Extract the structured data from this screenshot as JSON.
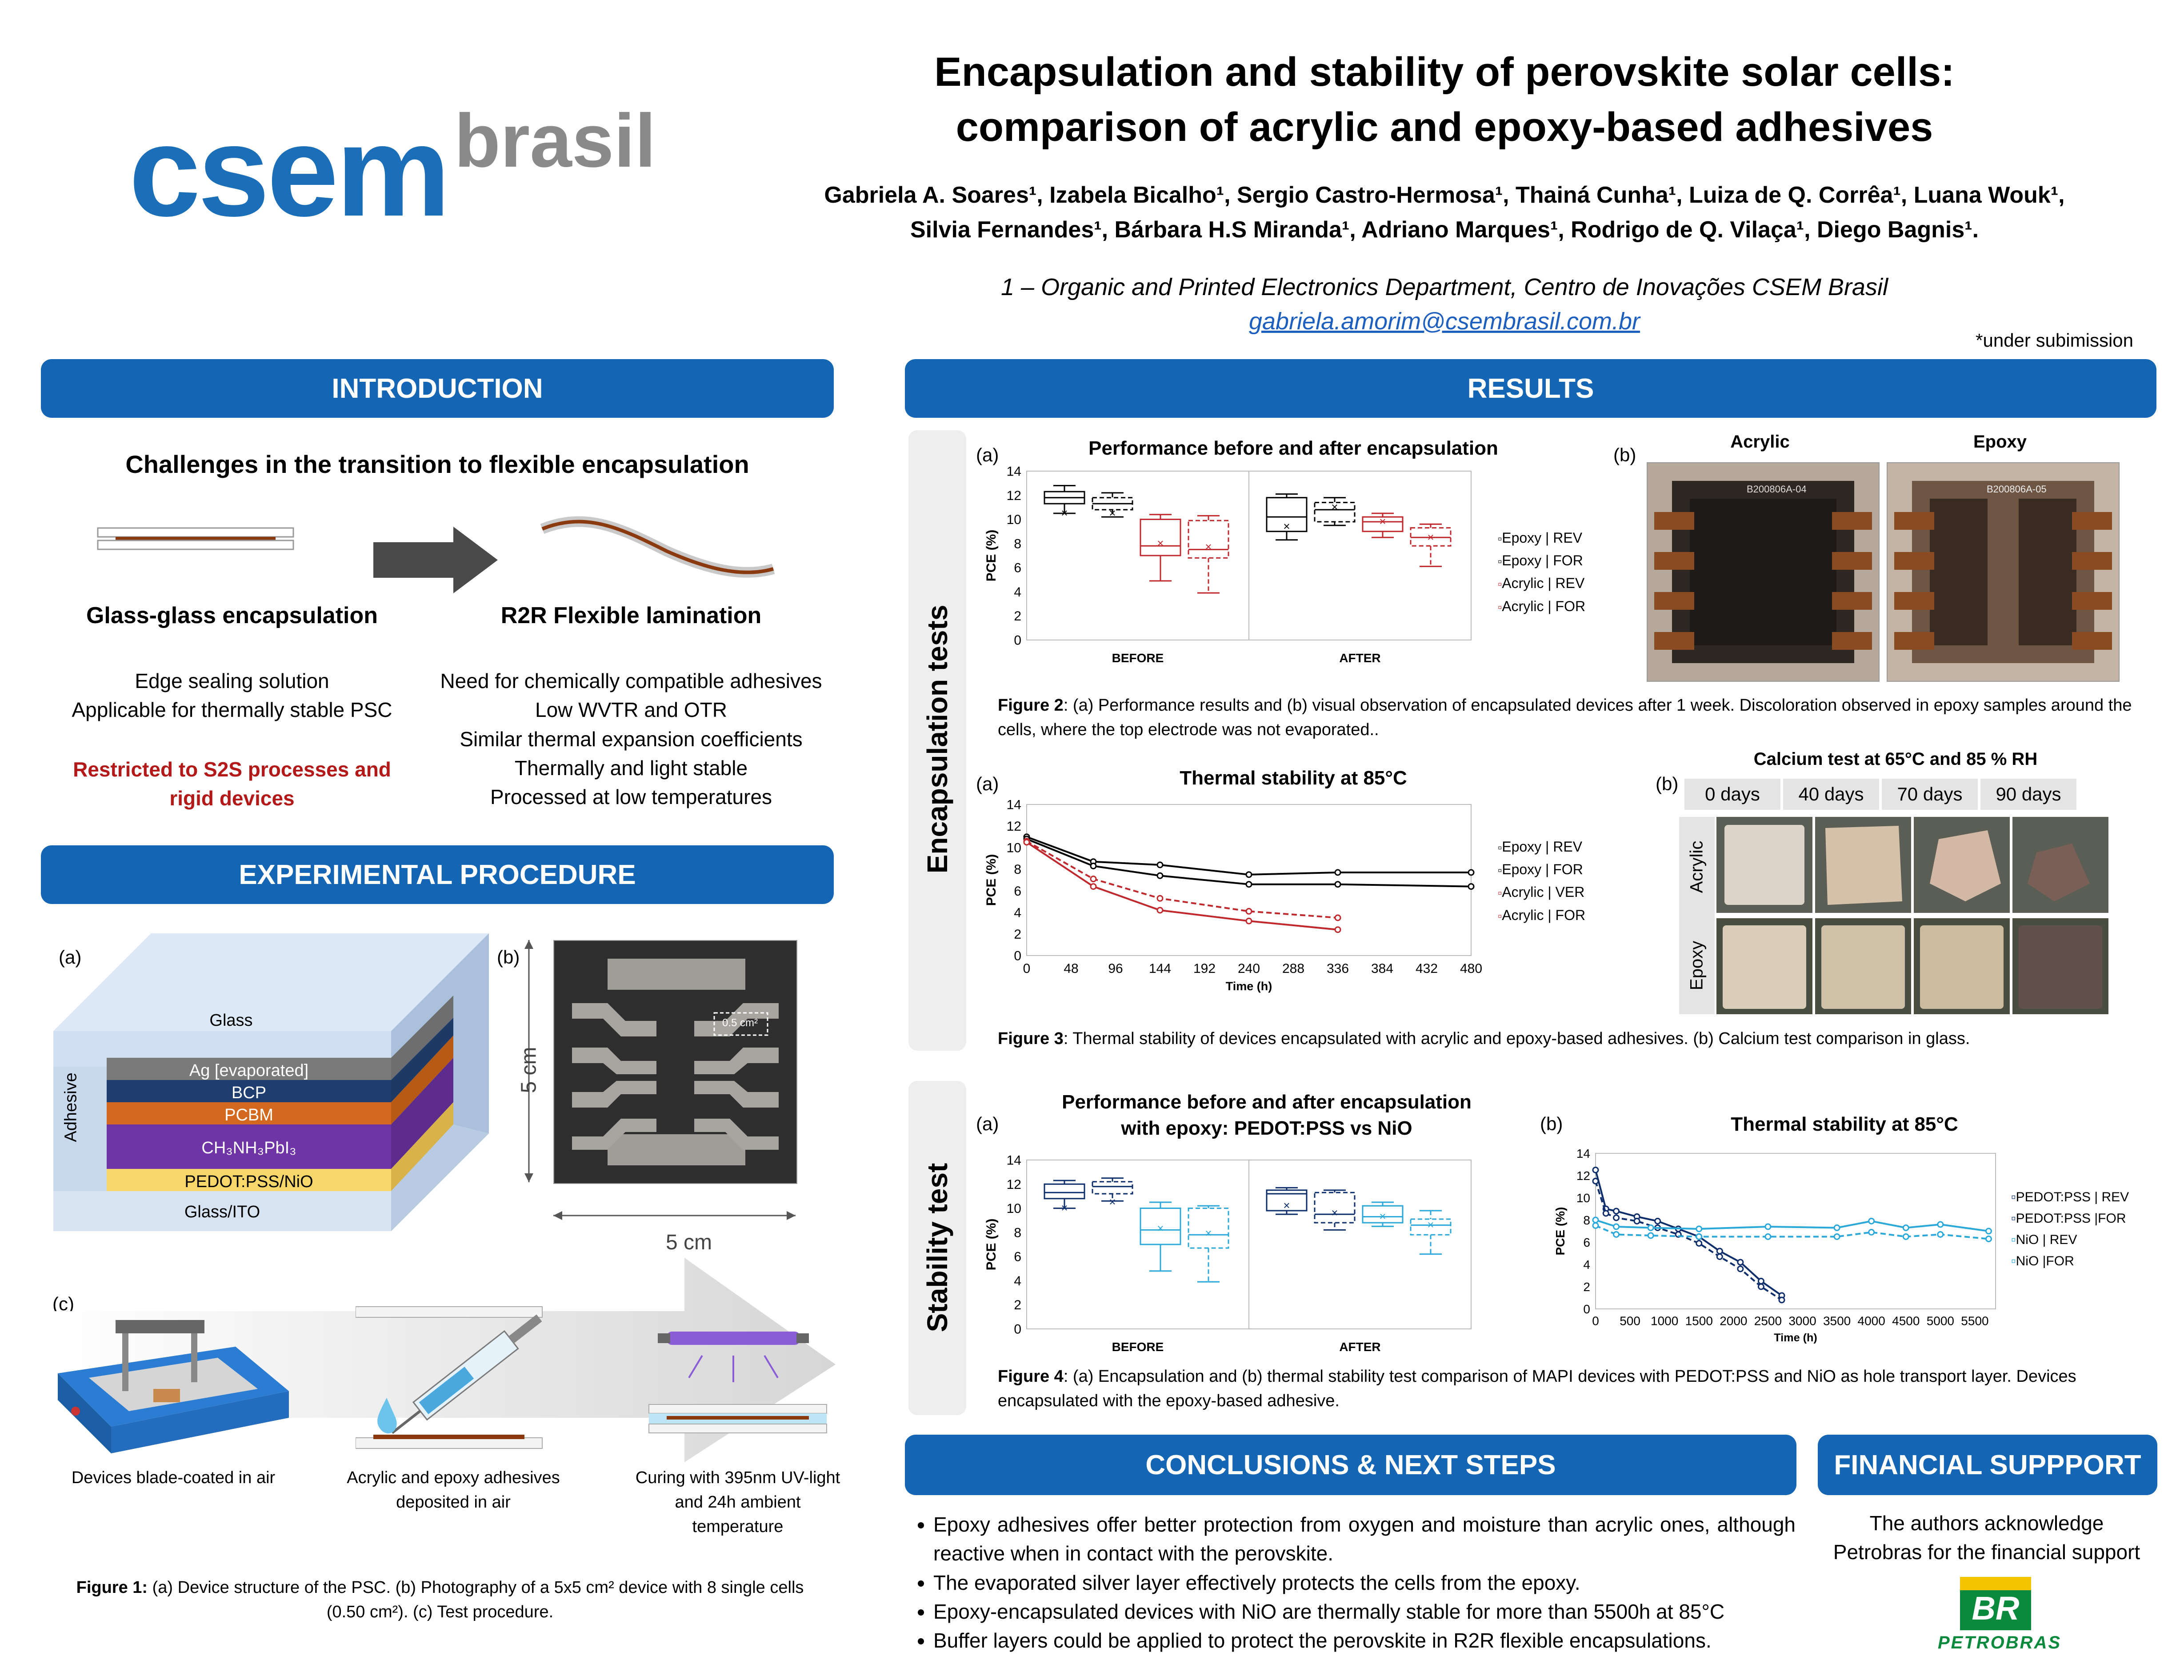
{
  "header": {
    "logo_main": "csem",
    "logo_sub": "brasil",
    "title_line1": "Encapsulation and stability of perovskite solar cells:",
    "title_line2": "comparison of acrylic and epoxy-based adhesives",
    "authors_line1": "Gabriela A. Soares¹, Izabela Bicalho¹, Sergio Castro-Hermosa¹, Thainá Cunha¹, Luiza de Q. Corrêa¹, Luana Wouk¹,",
    "authors_line2": "Silvia Fernandes¹, Bárbara H.S Miranda¹, Adriano Marques¹, Rodrigo de Q. Vilaça¹, Diego Bagnis¹.",
    "affiliation": "1 – Organic and Printed Electronics Department, Centro de Inovações CSEM Brasil",
    "email": "gabriela.amorim@csembrasil.com.br",
    "note": "*under subimission"
  },
  "introduction": {
    "banner": "INTRODUCTION",
    "subtitle": "Challenges in the transition to flexible encapsulation",
    "left_title": "Glass-glass encapsulation",
    "left_lines": [
      "Edge sealing solution",
      "Applicable for thermally stable PSC"
    ],
    "left_warning_1": "Restricted to S2S processes and",
    "left_warning_2": "rigid devices",
    "right_title": "R2R Flexible lamination",
    "right_lines": [
      "Need for chemically compatible adhesives",
      "Low WVTR and OTR",
      "Similar thermal expansion coefficients",
      "Thermally and light stable",
      "Processed at low temperatures"
    ]
  },
  "experimental": {
    "banner": "EXPERIMENTAL PROCEDURE",
    "label_a": "(a)",
    "label_b": "(b)",
    "label_c": "(c)",
    "layers": {
      "glass": "Glass",
      "ag": "Ag [evaporated]",
      "bcp": "BCP",
      "pcbm": "PCBM",
      "perovskite": "CH₃NH₃PbI₃",
      "htl": "PEDOT:PSS/NiO",
      "ito": "Glass/ITO",
      "adhesive": "Adhesive"
    },
    "dim_v": "5 cm",
    "dim_h": "5 cm",
    "cell_area": "0.5 cm²",
    "steps": [
      "Devices blade-coated in air",
      "Acrylic and epoxy adhesives deposited in air",
      "Curing with 395nm UV-light and 24h ambient temperature"
    ],
    "caption_bold": "Figure 1:",
    "caption_text": " (a) Device structure of the PSC. (b) Photography of a 5x5 cm² device with 8 single cells (0.50 cm²). (c) Test procedure."
  },
  "results": {
    "banner": "RESULTS",
    "side_encap": "Encapsulation tests",
    "side_stab": "Stability test",
    "fig2": {
      "label_a": "(a)",
      "label_b": "(b)",
      "title": "Performance before and after encapsulation",
      "photo_acrylic": "Acrylic",
      "photo_epoxy": "Epoxy",
      "photo_code_1": "B200806A-04",
      "photo_code_2": "B200806A-05",
      "caption_bold": "Figure 2",
      "caption_text": ": (a) Performance results and (b) visual observation of encapsulated devices after 1 week. Discoloration observed in epoxy samples around the cells, where the top electrode was not evaporated.."
    },
    "fig3": {
      "label_a": "(a)",
      "label_b": "(b)",
      "title": "Thermal stability at 85°C",
      "ca_title": "Calcium test at 65°C and 85 % RH",
      "ca_days": [
        "0 days",
        "40 days",
        "70 days",
        "90 days"
      ],
      "ca_rows": [
        "Acrylic",
        "Epoxy"
      ],
      "caption_bold": "Figure 3",
      "caption_text": ": Thermal stability of devices encapsulated with acrylic and epoxy-based adhesives. (b) Calcium test comparison in glass."
    },
    "fig4": {
      "label_a": "(a)",
      "label_b": "(b)",
      "title_line1": "Performance before and after encapsulation",
      "title_line2": "with epoxy: PEDOT:PSS vs NiO",
      "title_b": "Thermal stability at 85°C",
      "caption_bold": "Figure 4",
      "caption_text": ": (a) Encapsulation and (b) thermal stability test comparison of MAPI devices with PEDOT:PSS and NiO as hole transport layer. Devices encapsulated with the epoxy-based adhesive."
    }
  },
  "conclusions": {
    "banner": "CONCLUSIONS & NEXT STEPS",
    "items": [
      "Epoxy adhesives offer better protection from oxygen and moisture than acrylic ones, although reactive when in contact with the perovskite.",
      "The evaporated silver layer effectively protects the cells from the epoxy.",
      "Epoxy-encapsulated devices with NiO are thermally stable for more than 5500h at 85°C",
      "Buffer layers could be applied to protect the perovskite in R2R flexible encapsulations."
    ]
  },
  "funding": {
    "banner": "FINANCIAL SUPPPORT",
    "line1": "The authors acknowledge",
    "line2": "Petrobras for the financial support",
    "logo_br": "BR",
    "logo_name": "PETROBRAS"
  },
  "chart_data": [
    {
      "type": "box",
      "title": "Performance before and after encapsulation",
      "ylabel": "PCE (%)",
      "ylim": [
        0,
        14
      ],
      "yticks": [
        0,
        2,
        4,
        6,
        8,
        10,
        12,
        14
      ],
      "categories": [
        "BEFORE",
        "AFTER"
      ],
      "series": [
        {
          "name": "Epoxy | REV",
          "color": "#000000",
          "style": "solid",
          "boxes": [
            {
              "q1": 11.3,
              "med": 11.8,
              "q3": 12.3,
              "min": 10.5,
              "max": 12.8,
              "mean": 10.5
            },
            {
              "q1": 9.0,
              "med": 10.2,
              "q3": 11.8,
              "min": 8.3,
              "max": 12.1,
              "mean": 9.4
            }
          ]
        },
        {
          "name": "Epoxy | FOR",
          "color": "#000000",
          "style": "dashed",
          "boxes": [
            {
              "q1": 10.8,
              "med": 11.3,
              "q3": 11.8,
              "min": 10.2,
              "max": 12.2,
              "mean": 10.5
            },
            {
              "q1": 9.8,
              "med": 10.8,
              "q3": 11.4,
              "min": 9.5,
              "max": 11.8,
              "mean": 11.0
            }
          ]
        },
        {
          "name": "Acrylic | REV",
          "color": "#c0282d",
          "style": "solid",
          "boxes": [
            {
              "q1": 7.0,
              "med": 7.8,
              "q3": 10.0,
              "min": 4.9,
              "max": 10.4,
              "mean": 8.0
            },
            {
              "q1": 9.0,
              "med": 9.8,
              "q3": 10.2,
              "min": 8.5,
              "max": 10.5,
              "mean": 9.8
            }
          ]
        },
        {
          "name": "Acrylic | FOR",
          "color": "#c0282d",
          "style": "dashed",
          "boxes": [
            {
              "q1": 6.8,
              "med": 7.5,
              "q3": 9.9,
              "min": 3.9,
              "max": 10.3,
              "mean": 7.7
            },
            {
              "q1": 7.8,
              "med": 8.5,
              "q3": 9.3,
              "min": 6.1,
              "max": 9.6,
              "mean": 8.5
            }
          ]
        }
      ]
    },
    {
      "type": "line",
      "title": "Thermal stability at 85°C",
      "xlabel": "Time (h)",
      "ylabel": "PCE (%)",
      "xlim": [
        0,
        480
      ],
      "ylim": [
        0,
        14
      ],
      "xticks": [
        0,
        48,
        96,
        144,
        192,
        240,
        288,
        336,
        384,
        432,
        480
      ],
      "yticks": [
        0,
        2,
        4,
        6,
        8,
        10,
        12,
        14
      ],
      "series": [
        {
          "name": "Epoxy | REV",
          "color": "#000000",
          "style": "solid",
          "x": [
            0,
            72,
            144,
            240,
            336,
            480
          ],
          "y": [
            11.0,
            8.7,
            8.4,
            7.5,
            7.7,
            7.7
          ]
        },
        {
          "name": "Epoxy | FOR",
          "color": "#000000",
          "style": "solid",
          "x": [
            0,
            72,
            144,
            240,
            336,
            480
          ],
          "y": [
            10.8,
            8.3,
            7.4,
            6.6,
            6.6,
            6.4
          ]
        },
        {
          "name": "Acrylic | VER",
          "color": "#c0282d",
          "style": "dashed",
          "x": [
            0,
            72,
            144,
            240,
            336
          ],
          "y": [
            10.6,
            7.1,
            5.3,
            4.1,
            3.5
          ]
        },
        {
          "name": "Acrylic | FOR",
          "color": "#c0282d",
          "style": "solid",
          "x": [
            0,
            72,
            144,
            240,
            336
          ],
          "y": [
            10.5,
            6.4,
            4.2,
            3.2,
            2.4
          ]
        }
      ]
    },
    {
      "type": "box",
      "title": "Performance before and after encapsulation with epoxy: PEDOT:PSS vs NiO",
      "ylabel": "PCE (%)",
      "ylim": [
        0,
        14
      ],
      "yticks": [
        0,
        2,
        4,
        6,
        8,
        10,
        12,
        14
      ],
      "categories": [
        "BEFORE",
        "AFTER"
      ],
      "series": [
        {
          "name": "",
          "color": "#0d2d6b",
          "style": "solid",
          "boxes": [
            {
              "q1": 10.8,
              "med": 11.3,
              "q3": 12.0,
              "min": 10.0,
              "max": 12.3,
              "mean": 10.0
            },
            {
              "q1": 9.8,
              "med": 11.2,
              "q3": 11.5,
              "min": 9.5,
              "max": 11.7,
              "mean": 10.2
            }
          ]
        },
        {
          "name": "",
          "color": "#0d2d6b",
          "style": "dashed",
          "boxes": [
            {
              "q1": 11.2,
              "med": 11.8,
              "q3": 12.2,
              "min": 10.6,
              "max": 12.5,
              "mean": 10.5
            },
            {
              "q1": 8.8,
              "med": 9.5,
              "q3": 11.3,
              "min": 8.2,
              "max": 11.5,
              "mean": 9.6
            }
          ]
        },
        {
          "name": "",
          "color": "#29a8d9",
          "style": "solid",
          "boxes": [
            {
              "q1": 7.0,
              "med": 8.2,
              "q3": 10.0,
              "min": 4.8,
              "max": 10.5,
              "mean": 8.3
            },
            {
              "q1": 8.8,
              "med": 9.3,
              "q3": 10.2,
              "min": 8.5,
              "max": 10.5,
              "mean": 9.3
            }
          ]
        },
        {
          "name": "",
          "color": "#29a8d9",
          "style": "dashed",
          "boxes": [
            {
              "q1": 6.7,
              "med": 7.8,
              "q3": 10.0,
              "min": 3.9,
              "max": 10.2,
              "mean": 7.9
            },
            {
              "q1": 7.8,
              "med": 8.6,
              "q3": 9.1,
              "min": 6.2,
              "max": 9.8,
              "mean": 8.6
            }
          ]
        }
      ]
    },
    {
      "type": "line",
      "title": "Thermal stability at 85°C",
      "xlabel": "Time (h)",
      "ylabel": "PCE (%)",
      "xlim": [
        0,
        5800
      ],
      "ylim": [
        0,
        14
      ],
      "xticks": [
        0,
        500,
        1000,
        1500,
        2000,
        2500,
        3000,
        3500,
        4000,
        4500,
        5000,
        5500
      ],
      "yticks": [
        0,
        2,
        4,
        6,
        8,
        10,
        12,
        14
      ],
      "series": [
        {
          "name": "PEDOT:PSS | REV",
          "color": "#0d2d6b",
          "style": "solid",
          "x": [
            0,
            150,
            300,
            600,
            900,
            1200,
            1500,
            1800,
            2100,
            2400,
            2700
          ],
          "y": [
            12.5,
            9.0,
            8.8,
            8.3,
            7.9,
            7.2,
            6.5,
            5.2,
            4.2,
            2.5,
            1.2
          ]
        },
        {
          "name": "PEDOT:PSS |FOR",
          "color": "#0d2d6b",
          "style": "dashed",
          "x": [
            0,
            150,
            300,
            600,
            900,
            1200,
            1500,
            1800,
            2100,
            2400,
            2700
          ],
          "y": [
            11.5,
            8.6,
            8.2,
            7.9,
            7.3,
            6.7,
            5.9,
            4.7,
            3.6,
            2.0,
            0.8
          ]
        },
        {
          "name": "NiO | REV",
          "color": "#29a8d9",
          "style": "solid",
          "x": [
            0,
            300,
            800,
            1500,
            2500,
            3500,
            4000,
            4500,
            5000,
            5700
          ],
          "y": [
            8.0,
            7.4,
            7.3,
            7.2,
            7.4,
            7.3,
            7.9,
            7.3,
            7.6,
            7.0
          ]
        },
        {
          "name": "NiO |FOR",
          "color": "#29a8d9",
          "style": "dashed",
          "x": [
            0,
            300,
            800,
            1500,
            2500,
            3500,
            4000,
            4500,
            5000,
            5700
          ],
          "y": [
            7.5,
            6.7,
            6.6,
            6.5,
            6.5,
            6.5,
            6.9,
            6.5,
            6.7,
            6.3
          ]
        }
      ]
    }
  ]
}
